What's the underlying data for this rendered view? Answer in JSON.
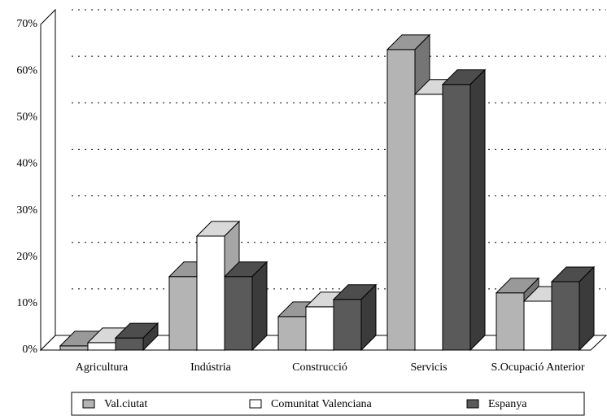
{
  "chart_data": {
    "type": "bar3d",
    "categories": [
      "Agricultura",
      "Indústria",
      "Construcció",
      "Servicis",
      "S.Ocupació Anterior"
    ],
    "series": [
      {
        "name": "Val.ciutat",
        "color": "#b4b4b4",
        "values": [
          0.9,
          15.8,
          7.2,
          64.6,
          12.3
        ]
      },
      {
        "name": "Comunitat Valenciana",
        "color": "#ffffff",
        "values": [
          1.6,
          24.5,
          9.3,
          55.0,
          10.5
        ]
      },
      {
        "name": "Espanya",
        "color": "#5a5a5a",
        "values": [
          2.6,
          15.8,
          10.9,
          57.1,
          14.7
        ]
      }
    ],
    "ylim": [
      0,
      70
    ],
    "yticks": [
      {
        "value": 0,
        "label": "0%"
      },
      {
        "value": 10,
        "label": "10%"
      },
      {
        "value": 20,
        "label": "20%"
      },
      {
        "value": 30,
        "label": "30%"
      },
      {
        "value": 40,
        "label": "40%"
      },
      {
        "value": 50,
        "label": "50%"
      },
      {
        "value": 60,
        "label": "60%"
      },
      {
        "value": 70,
        "label": "70%"
      }
    ],
    "grid": true,
    "legend": "bottom"
  }
}
